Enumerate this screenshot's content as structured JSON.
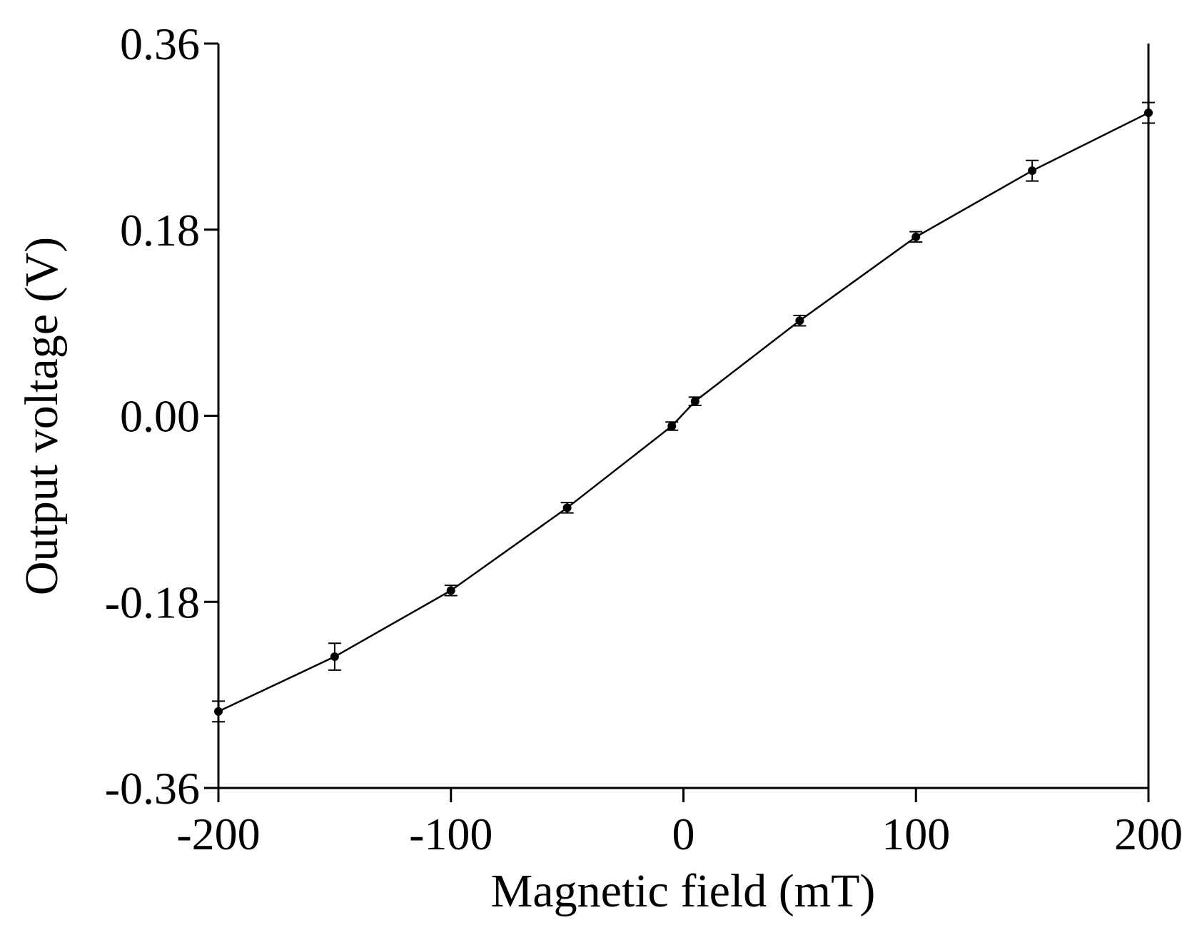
{
  "chart_data": {
    "type": "line",
    "x_label": "Magnetic field (mT)",
    "y_label": "Output voltage (V)",
    "x": [
      -200,
      -150,
      -100,
      -50,
      -5,
      5,
      50,
      100,
      150,
      200
    ],
    "series": [
      {
        "color": "#000000",
        "values": [
          -0.286,
          -0.233,
          -0.169,
          -0.089,
          -0.01,
          0.014,
          0.092,
          0.173,
          0.237,
          0.293
        ],
        "errors": [
          0.01,
          0.013,
          0.005,
          0.005,
          0.004,
          0.004,
          0.005,
          0.005,
          0.01,
          0.01
        ]
      }
    ],
    "xlim": [
      -200,
      200
    ],
    "xticks": [
      -200,
      -100,
      0,
      100,
      200
    ],
    "ylim": [
      -0.36,
      0.36
    ],
    "yticks": [
      -0.36,
      -0.18,
      {
        "value": 0,
        "label": "0.00"
      },
      0.18,
      0.36
    ]
  }
}
